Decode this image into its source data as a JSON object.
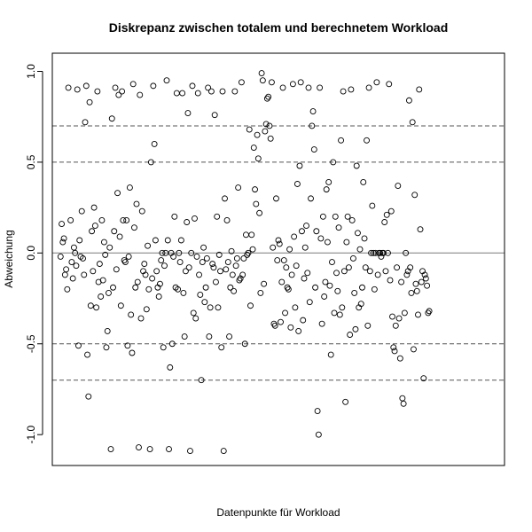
{
  "chart_data": {
    "type": "scatter",
    "title": "Diskrepanz zwischen totalem und berechnetem Workload",
    "xlabel": "Datenpunkte für Workload",
    "ylabel": "Abweichung",
    "xlim": [
      0,
      400
    ],
    "ylim": [
      -1.17,
      1.1
    ],
    "yticks": [
      -1.0,
      -0.5,
      0.0,
      0.5,
      1.0
    ],
    "ytick_labels": [
      "-1.0",
      "-0.5",
      "0.0",
      "0.5",
      "1.0"
    ],
    "x_ticks_visible": false,
    "marker": "open-circle",
    "reference_lines": [
      {
        "y": 0.0,
        "style": "solid",
        "color": "#888888"
      },
      {
        "y": 0.5,
        "style": "dashed",
        "color": "#555555"
      },
      {
        "y": -0.5,
        "style": "dashed",
        "color": "#555555"
      },
      {
        "y": 0.7,
        "style": "dashed",
        "color": "#555555"
      },
      {
        "y": -0.7,
        "style": "dashed",
        "color": "#555555"
      }
    ],
    "points": [
      [
        5,
        -0.02
      ],
      [
        6,
        0.16
      ],
      [
        7,
        0.06
      ],
      [
        8,
        0.08
      ],
      [
        9,
        -0.12
      ],
      [
        10,
        -0.09
      ],
      [
        11,
        -0.2
      ],
      [
        12,
        0.91
      ],
      [
        14,
        0.18
      ],
      [
        15,
        -0.05
      ],
      [
        16,
        -0.14
      ],
      [
        17,
        0.03
      ],
      [
        18,
        0.0
      ],
      [
        19,
        -0.07
      ],
      [
        20,
        0.9
      ],
      [
        21,
        -0.51
      ],
      [
        22,
        0.07
      ],
      [
        23,
        -0.02
      ],
      [
        24,
        0.23
      ],
      [
        25,
        -0.03
      ],
      [
        26,
        -0.12
      ],
      [
        27,
        0.72
      ],
      [
        28,
        0.92
      ],
      [
        29,
        -0.56
      ],
      [
        30,
        -0.79
      ],
      [
        31,
        0.83
      ],
      [
        32,
        -0.29
      ],
      [
        33,
        0.12
      ],
      [
        34,
        -0.1
      ],
      [
        35,
        0.25
      ],
      [
        36,
        0.15
      ],
      [
        37,
        -0.3
      ],
      [
        38,
        0.89
      ],
      [
        39,
        -0.16
      ],
      [
        40,
        -0.06
      ],
      [
        41,
        -0.24
      ],
      [
        42,
        0.18
      ],
      [
        43,
        -0.15
      ],
      [
        44,
        0.06
      ],
      [
        45,
        -0.01
      ],
      [
        46,
        -0.52
      ],
      [
        47,
        -0.43
      ],
      [
        48,
        -0.22
      ],
      [
        49,
        0.03
      ],
      [
        50,
        -1.08
      ],
      [
        51,
        0.74
      ],
      [
        52,
        -0.19
      ],
      [
        53,
        0.12
      ],
      [
        54,
        0.91
      ],
      [
        55,
        -0.09
      ],
      [
        56,
        0.33
      ],
      [
        57,
        0.87
      ],
      [
        58,
        0.09
      ],
      [
        59,
        -0.29
      ],
      [
        60,
        0.89
      ],
      [
        61,
        0.18
      ],
      [
        62,
        -0.04
      ],
      [
        63,
        -0.05
      ],
      [
        64,
        0.18
      ],
      [
        65,
        -0.51
      ],
      [
        66,
        -0.02
      ],
      [
        67,
        0.36
      ],
      [
        68,
        -0.34
      ],
      [
        69,
        -0.55
      ],
      [
        70,
        0.93
      ],
      [
        71,
        0.14
      ],
      [
        72,
        -0.19
      ],
      [
        73,
        0.27
      ],
      [
        74,
        -0.16
      ],
      [
        75,
        -1.07
      ],
      [
        76,
        0.87
      ],
      [
        77,
        -0.36
      ],
      [
        78,
        0.23
      ],
      [
        79,
        -0.1
      ],
      [
        80,
        -0.06
      ],
      [
        81,
        -0.12
      ],
      [
        82,
        -0.31
      ],
      [
        83,
        0.04
      ],
      [
        84,
        -0.2
      ],
      [
        85,
        -1.08
      ],
      [
        86,
        0.5
      ],
      [
        87,
        -0.14
      ],
      [
        88,
        0.92
      ],
      [
        89,
        0.6
      ],
      [
        90,
        0.07
      ],
      [
        91,
        -0.1
      ],
      [
        92,
        -0.19
      ],
      [
        93,
        -0.24
      ],
      [
        94,
        -0.17
      ],
      [
        95,
        -0.04
      ],
      [
        96,
        0.0
      ],
      [
        97,
        -0.52
      ],
      [
        98,
        -0.07
      ],
      [
        99,
        0.0
      ],
      [
        100,
        0.95
      ],
      [
        101,
        0.07
      ],
      [
        102,
        -1.08
      ],
      [
        103,
        -0.63
      ],
      [
        104,
        0.0
      ],
      [
        105,
        -0.5
      ],
      [
        106,
        -0.02
      ],
      [
        107,
        0.2
      ],
      [
        108,
        -0.19
      ],
      [
        109,
        0.88
      ],
      [
        110,
        -0.2
      ],
      [
        111,
        0.0
      ],
      [
        112,
        -0.05
      ],
      [
        113,
        0.07
      ],
      [
        114,
        0.88
      ],
      [
        115,
        -0.22
      ],
      [
        116,
        -0.46
      ],
      [
        117,
        -0.1
      ],
      [
        118,
        0.17
      ],
      [
        119,
        0.77
      ],
      [
        120,
        -0.08
      ],
      [
        121,
        -1.09
      ],
      [
        122,
        0.0
      ],
      [
        123,
        0.92
      ],
      [
        124,
        -0.33
      ],
      [
        125,
        0.19
      ],
      [
        126,
        -0.36
      ],
      [
        127,
        -0.02
      ],
      [
        128,
        0.88
      ],
      [
        129,
        -0.12
      ],
      [
        130,
        -0.23
      ],
      [
        131,
        -0.7
      ],
      [
        132,
        -0.05
      ],
      [
        133,
        0.03
      ],
      [
        134,
        -0.27
      ],
      [
        135,
        -0.19
      ],
      [
        136,
        -0.03
      ],
      [
        137,
        0.91
      ],
      [
        138,
        -0.46
      ],
      [
        139,
        -0.3
      ],
      [
        140,
        0.89
      ],
      [
        141,
        -0.06
      ],
      [
        142,
        -0.08
      ],
      [
        143,
        0.76
      ],
      [
        144,
        -0.16
      ],
      [
        145,
        0.2
      ],
      [
        146,
        -0.3
      ],
      [
        147,
        -0.01
      ],
      [
        148,
        -0.1
      ],
      [
        149,
        -0.52
      ],
      [
        150,
        0.89
      ],
      [
        151,
        -1.09
      ],
      [
        152,
        0.3
      ],
      [
        153,
        -0.09
      ],
      [
        154,
        0.18
      ],
      [
        155,
        -0.05
      ],
      [
        156,
        -0.46
      ],
      [
        157,
        -0.19
      ],
      [
        158,
        0.01
      ],
      [
        159,
        -0.12
      ],
      [
        160,
        -0.21
      ],
      [
        161,
        0.89
      ],
      [
        162,
        -0.07
      ],
      [
        163,
        -0.03
      ],
      [
        164,
        0.36
      ],
      [
        165,
        -0.15
      ],
      [
        166,
        -0.14
      ],
      [
        167,
        0.94
      ],
      [
        168,
        -0.12
      ],
      [
        169,
        -0.03
      ],
      [
        170,
        -0.5
      ],
      [
        171,
        0.1
      ],
      [
        172,
        -0.01
      ],
      [
        173,
        0.0
      ],
      [
        174,
        0.68
      ],
      [
        175,
        -0.29
      ],
      [
        176,
        0.1
      ],
      [
        177,
        0.02
      ],
      [
        178,
        0.58
      ],
      [
        179,
        0.35
      ],
      [
        180,
        0.27
      ],
      [
        181,
        0.65
      ],
      [
        182,
        0.52
      ],
      [
        183,
        0.22
      ],
      [
        184,
        -0.22
      ],
      [
        185,
        0.99
      ],
      [
        186,
        0.95
      ],
      [
        187,
        -0.17
      ],
      [
        188,
        0.67
      ],
      [
        189,
        0.71
      ],
      [
        190,
        0.85
      ],
      [
        191,
        0.86
      ],
      [
        192,
        0.7
      ],
      [
        193,
        0.63
      ],
      [
        194,
        0.94
      ],
      [
        195,
        0.03
      ],
      [
        196,
        -0.39
      ],
      [
        197,
        -0.4
      ],
      [
        198,
        0.3
      ],
      [
        199,
        -0.04
      ],
      [
        200,
        0.07
      ],
      [
        201,
        0.05
      ],
      [
        202,
        -0.38
      ],
      [
        203,
        -0.16
      ],
      [
        204,
        0.91
      ],
      [
        205,
        -0.04
      ],
      [
        206,
        -0.33
      ],
      [
        207,
        -0.08
      ],
      [
        208,
        -0.19
      ],
      [
        209,
        -0.2
      ],
      [
        210,
        0.02
      ],
      [
        211,
        -0.41
      ],
      [
        212,
        -0.12
      ],
      [
        213,
        0.93
      ],
      [
        214,
        0.09
      ],
      [
        215,
        -0.3
      ],
      [
        216,
        -0.07
      ],
      [
        217,
        0.38
      ],
      [
        218,
        -0.43
      ],
      [
        219,
        0.48
      ],
      [
        220,
        0.94
      ],
      [
        221,
        0.12
      ],
      [
        222,
        -0.37
      ],
      [
        223,
        -0.14
      ],
      [
        224,
        0.03
      ],
      [
        225,
        0.15
      ],
      [
        226,
        -0.11
      ],
      [
        227,
        0.91
      ],
      [
        228,
        -0.27
      ],
      [
        229,
        0.3
      ],
      [
        230,
        0.7
      ],
      [
        231,
        0.78
      ],
      [
        232,
        0.57
      ],
      [
        233,
        -0.19
      ],
      [
        234,
        0.12
      ],
      [
        235,
        -0.87
      ],
      [
        236,
        -1.0
      ],
      [
        237,
        0.91
      ],
      [
        238,
        0.08
      ],
      [
        239,
        -0.39
      ],
      [
        240,
        0.2
      ],
      [
        241,
        -0.24
      ],
      [
        242,
        -0.16
      ],
      [
        243,
        0.35
      ],
      [
        244,
        0.06
      ],
      [
        245,
        0.39
      ],
      [
        246,
        -0.18
      ],
      [
        247,
        -0.56
      ],
      [
        248,
        -0.05
      ],
      [
        249,
        0.5
      ],
      [
        250,
        -0.33
      ],
      [
        251,
        0.2
      ],
      [
        252,
        -0.11
      ],
      [
        253,
        -0.21
      ],
      [
        254,
        0.14
      ],
      [
        255,
        -0.34
      ],
      [
        256,
        0.62
      ],
      [
        257,
        -0.3
      ],
      [
        258,
        0.89
      ],
      [
        259,
        -0.1
      ],
      [
        260,
        -0.82
      ],
      [
        261,
        0.06
      ],
      [
        262,
        0.2
      ],
      [
        263,
        -0.08
      ],
      [
        264,
        -0.45
      ],
      [
        265,
        0.9
      ],
      [
        266,
        0.18
      ],
      [
        267,
        -0.03
      ],
      [
        268,
        -0.22
      ],
      [
        269,
        -0.42
      ],
      [
        270,
        0.48
      ],
      [
        271,
        0.11
      ],
      [
        272,
        -0.3
      ],
      [
        273,
        0.02
      ],
      [
        274,
        -0.28
      ],
      [
        275,
        -0.19
      ],
      [
        276,
        0.39
      ],
      [
        277,
        0.08
      ],
      [
        278,
        -0.08
      ],
      [
        279,
        0.62
      ],
      [
        280,
        -0.4
      ],
      [
        281,
        0.91
      ],
      [
        282,
        -0.1
      ],
      [
        283,
        0.0
      ],
      [
        284,
        0.26
      ],
      [
        285,
        0.0
      ],
      [
        286,
        -0.2
      ],
      [
        287,
        0.0
      ],
      [
        288,
        0.94
      ],
      [
        289,
        -0.12
      ],
      [
        290,
        0.0
      ],
      [
        291,
        0.0
      ],
      [
        292,
        -0.02
      ],
      [
        293,
        0.0
      ],
      [
        294,
        0.0
      ],
      [
        295,
        0.17
      ],
      [
        296,
        -0.1
      ],
      [
        297,
        0.21
      ],
      [
        298,
        0.0
      ],
      [
        299,
        0.93
      ],
      [
        300,
        -0.15
      ],
      [
        301,
        0.23
      ],
      [
        302,
        -0.35
      ],
      [
        303,
        -0.52
      ],
      [
        304,
        -0.54
      ],
      [
        305,
        -0.4
      ],
      [
        306,
        -0.08
      ],
      [
        307,
        0.37
      ],
      [
        308,
        -0.36
      ],
      [
        309,
        -0.58
      ],
      [
        310,
        -0.16
      ],
      [
        311,
        -0.8
      ],
      [
        312,
        -0.83
      ],
      [
        313,
        -0.33
      ],
      [
        314,
        0.0
      ],
      [
        315,
        -0.12
      ],
      [
        316,
        -0.1
      ],
      [
        317,
        0.84
      ],
      [
        318,
        -0.08
      ],
      [
        319,
        -0.22
      ],
      [
        320,
        0.72
      ],
      [
        321,
        -0.53
      ],
      [
        322,
        0.32
      ],
      [
        323,
        -0.17
      ],
      [
        324,
        -0.21
      ],
      [
        325,
        -0.34
      ],
      [
        326,
        0.9
      ],
      [
        327,
        0.13
      ],
      [
        328,
        -0.16
      ],
      [
        329,
        -0.1
      ],
      [
        330,
        -0.69
      ],
      [
        331,
        -0.12
      ],
      [
        332,
        -0.14
      ],
      [
        333,
        -0.18
      ],
      [
        334,
        -0.33
      ],
      [
        335,
        -0.32
      ]
    ]
  }
}
